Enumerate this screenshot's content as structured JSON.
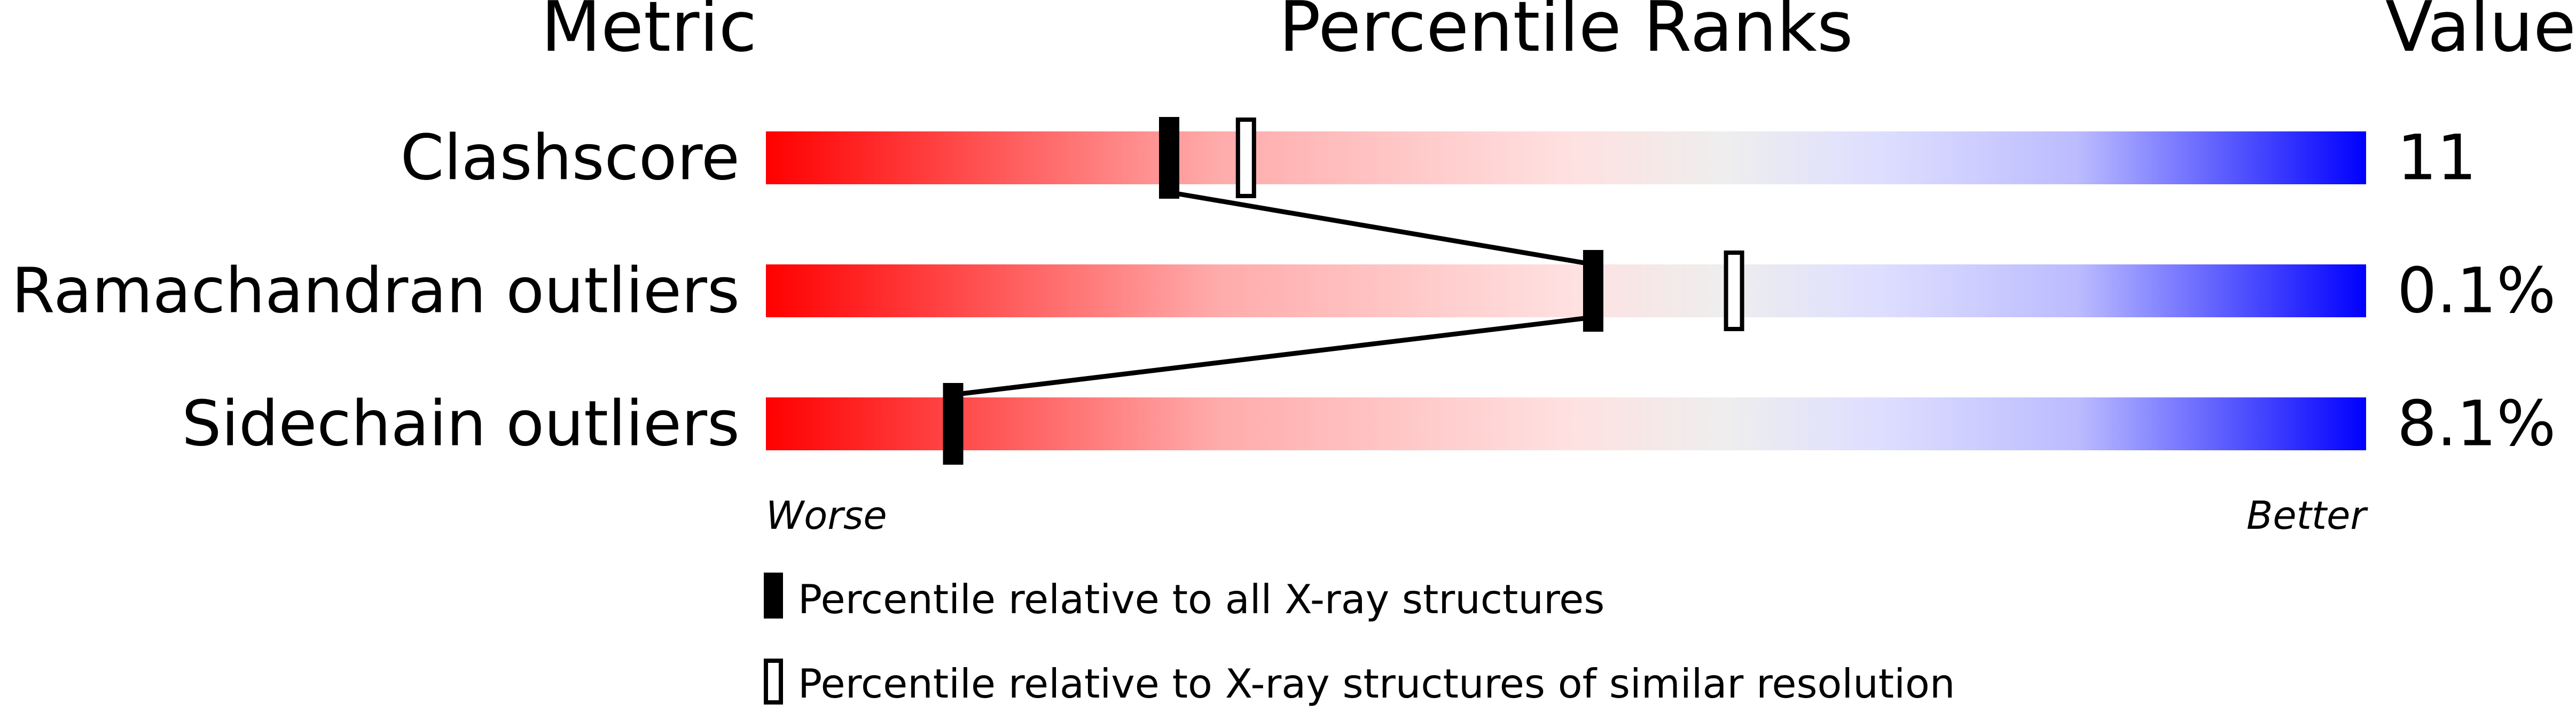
{
  "chart_data": {
    "type": "percentile-bar",
    "headers": {
      "metric": "Metric",
      "ranks": "Percentile Ranks",
      "value": "Value"
    },
    "xlim": [
      0,
      100
    ],
    "rows": [
      {
        "metric": "Clashscore",
        "value": "11",
        "percentile_all": 25.2,
        "percentile_similar": 30.0
      },
      {
        "metric": "Ramachandran outliers",
        "value": "0.1%",
        "percentile_all": 51.7,
        "percentile_similar": 60.5
      },
      {
        "metric": "Sidechain outliers",
        "value": "8.1%",
        "percentile_all": 11.7,
        "percentile_similar": null
      }
    ],
    "axis_labels": {
      "left": "Worse",
      "right": "Better"
    },
    "legend": {
      "all": "Percentile relative to all X-ray structures",
      "similar": "Percentile relative to X-ray structures of similar resolution"
    },
    "colors": {
      "worse": "#ff0000",
      "middle": "#eeeeee",
      "better": "#0000ff",
      "marker": "#000000"
    }
  }
}
